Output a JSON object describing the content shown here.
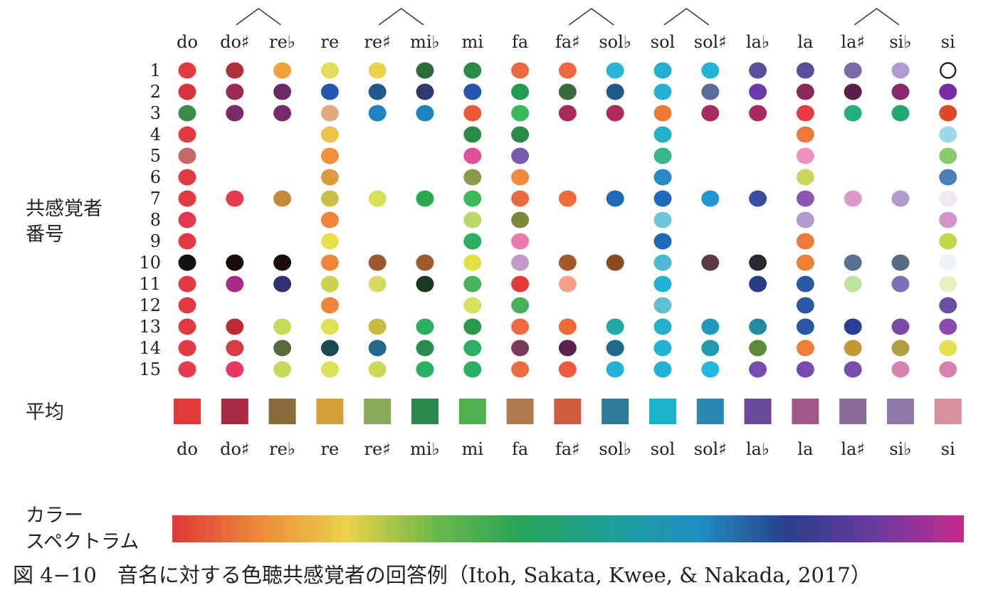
{
  "chart_data": {
    "type": "scatter",
    "notes": [
      "do",
      "do♯",
      "re♭",
      "re",
      "re♯",
      "mi♭",
      "mi",
      "fa",
      "fa♯",
      "sol♭",
      "sol",
      "sol♯",
      "la♭",
      "la",
      "la♯",
      "si♭",
      "si"
    ],
    "enharmonic_pairs": [
      [
        1,
        2
      ],
      [
        4,
        5
      ],
      [
        8,
        9
      ],
      [
        10,
        11
      ],
      [
        14,
        15
      ]
    ],
    "rows": [
      "1",
      "2",
      "3",
      "4",
      "5",
      "6",
      "7",
      "8",
      "9",
      "10",
      "11",
      "12",
      "13",
      "14",
      "15"
    ],
    "row_axis_label": [
      "共感覚者",
      "番号"
    ],
    "average_label": "平均",
    "spectrum_label": [
      "カラー",
      "スペクトラム"
    ],
    "dots": [
      [
        "#e03a45",
        "#b0303a",
        "#f3a03a",
        "#dede58",
        "#ead24a",
        "#2b6b3a",
        "#2a8a4a",
        "#ec6a40",
        "#ee6a40",
        "#28b3d8",
        "#24b0d0",
        "#22b2d4",
        "#5a4e9a",
        "#5a4ea0",
        "#7a6aaa",
        "#b09ad0",
        "ring"
      ],
      [
        "#d8323e",
        "#9a2a52",
        "#6a2a62",
        "#2556ae",
        "#215a8a",
        "#2e3a6e",
        "#2556ae",
        "#239a52",
        "#3a6a3a",
        "#215a8a",
        "#24b0d0",
        "#5a6a9a",
        "#6a3aa8",
        "#8a2a5a",
        "#5a204a",
        "#8a2a70",
        "#7a2aa8"
      ],
      [
        "#3a8a4a",
        "#7a2a6a",
        "#7a2a6a",
        "#e2a882",
        "#1f82c2",
        "#1f82c2",
        "#ec5a35",
        "#3ab858",
        "#a82a5a",
        "#b02a5a",
        "#ee7a3a",
        "#a82a60",
        "#a82a60",
        "#ea3a45",
        "#23b07a",
        "#22a870",
        "#dd4a2a"
      ],
      [
        "#e23a45",
        null,
        null,
        "#eac24a",
        null,
        null,
        "#2a8a4a",
        "#2a8a4a",
        null,
        null,
        "#24b0c8",
        null,
        null,
        "#ee7a40",
        null,
        null,
        "#9ad8e8"
      ],
      [
        "#c8686a",
        null,
        null,
        "#f0903a",
        null,
        null,
        "#e0509a",
        "#7a5aaa",
        null,
        null,
        "#3ab88a",
        null,
        null,
        "#ec90c0",
        null,
        null,
        "#8ac86a"
      ],
      [
        "#e23a45",
        null,
        null,
        "#de9a40",
        null,
        null,
        "#8a9a48",
        "#f08a3a",
        null,
        null,
        "#2a88c8",
        null,
        null,
        "#c8d858",
        null,
        null,
        "#4a80b8"
      ],
      [
        "#e23a45",
        "#e83a50",
        "#c08a3a",
        "#cac048",
        "#d8de5a",
        "#2aa850",
        "#3ab858",
        "#ec6a40",
        "#ee6a38",
        "#1f6ab8",
        "#1f6ab8",
        "#2196d2",
        "#3a4ea0",
        "#8a58b0",
        "#dc98c8",
        "#b09ad0",
        "#f0e8f0"
      ],
      [
        "#e23a55",
        null,
        null,
        "#f0843a",
        null,
        null,
        "#bad868",
        "#7a8a3a",
        null,
        null,
        "#6ac8d8",
        null,
        null,
        "#b09ad0",
        null,
        null,
        "#d094c8"
      ],
      [
        "#e23a45",
        null,
        null,
        "#e8e04a",
        null,
        null,
        "#2ab060",
        "#ec78b0",
        null,
        null,
        "#1f6ab8",
        null,
        null,
        "#ef7a40",
        null,
        null,
        "#c0d848"
      ],
      [
        "#111111",
        "#1a0d08",
        "#1a0d08",
        "#f0843a",
        "#9a5a30",
        "#a05a2e",
        "#e0e040",
        "#c09ac8",
        "#a05a2e",
        "#8a4a22",
        "#50b8d0",
        "#5a3a4a",
        "#2e2832",
        "#f08038",
        "#5a7090",
        "#5a6a80",
        "#eaf4f8"
      ],
      [
        "#e23a45",
        "#a82a8a",
        "#2e3270",
        "#ccd250",
        "#d8d860",
        "#1a3a1e",
        "#48b058",
        "#e03a35",
        "#f4a088",
        null,
        "#22b2d4",
        null,
        "#2a3a8a",
        "#2a58a8",
        "#c0e0a0",
        "#7a70b8",
        "#eaeec0"
      ],
      [
        "#e23a45",
        null,
        null,
        "#f0843a",
        null,
        null,
        "#d8e060",
        "#48b058",
        null,
        null,
        "#60c0d0",
        null,
        null,
        "#2a58a8",
        null,
        null,
        "#6a4ea8"
      ],
      [
        "#e23a45",
        "#c02a38",
        "#c8d858",
        "#dee058",
        "#c8ba40",
        "#2ab060",
        "#2a9a50",
        "#ee6a40",
        "#ee6a38",
        "#1faaa8",
        "#24b0d0",
        "#1f9abc",
        "#1f8ca0",
        "#2a58a8",
        "#2a3e98",
        "#7a4aa8",
        "#8a4ab0"
      ],
      [
        "#e23a45",
        "#d83a48",
        "#5a6a3a",
        "#1a4a50",
        "#1f6a8a",
        "#2a8a50",
        "#2ab060",
        "#7a3a5a",
        "#5a204e",
        "#1f6a8a",
        "#22b2d4",
        "#1f9ab0",
        "#5a8a3a",
        "#f08038",
        "#c09838",
        "#b0a040",
        "#e4e050"
      ],
      [
        "#e83a50",
        "#e83a60",
        "#c8d858",
        "#dee058",
        "#ccd858",
        "#2ab060",
        "#2ab060",
        "#ee6a40",
        "#ee5a40",
        "#22b2d8",
        "#22b2d8",
        "#20b8e0",
        "#7a4ab0",
        "#7a4ab0",
        "#7a4ab0",
        "#d880b0",
        "#d880b0"
      ]
    ],
    "average": [
      "#e03a3a",
      "#a82a44",
      "#8a6a3a",
      "#d4a03a",
      "#88a85a",
      "#2a884a",
      "#50b050",
      "#b07a50",
      "#d05a40",
      "#2a7a98",
      "#1ab2c8",
      "#2a88b0",
      "#6a4a9a",
      "#a05888",
      "#8a6a98",
      "#9078a8",
      "#d890a0"
    ],
    "spectrum_stops": [
      "#e03838",
      "#ec8a3a",
      "#ead24a",
      "#6ab84a",
      "#26a25a",
      "#1f9e9a",
      "#1f8ec2",
      "#2a3e8a",
      "#6a3aa0",
      "#c62a8a"
    ]
  },
  "caption": "図 4−10　音名に対する色聴共感覚者の回答例（Itoh, Sakata, Kwee, & Nakada, 2017）"
}
